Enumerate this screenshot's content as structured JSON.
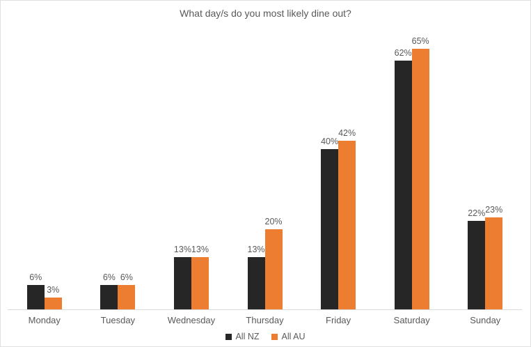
{
  "chart_data": {
    "type": "bar",
    "title": "What day/s do you most likely dine out?",
    "categories": [
      "Monday",
      "Tuesday",
      "Wednesday",
      "Thursday",
      "Friday",
      "Saturday",
      "Sunday"
    ],
    "series": [
      {
        "name": "All NZ",
        "color": "#262626",
        "values": [
          6,
          6,
          13,
          13,
          40,
          62,
          22
        ]
      },
      {
        "name": "All AU",
        "color": "#ED7D31",
        "values": [
          3,
          6,
          13,
          20,
          42,
          65,
          23
        ]
      }
    ],
    "value_suffix": "%",
    "xlabel": "",
    "ylabel": "",
    "ylim": [
      0,
      70
    ],
    "grid": false,
    "legend_position": "bottom",
    "colors": {
      "text": "#595959",
      "axis_line": "#d9d9d9",
      "frame_border": "#e0e0e0",
      "background": "#ffffff"
    }
  }
}
